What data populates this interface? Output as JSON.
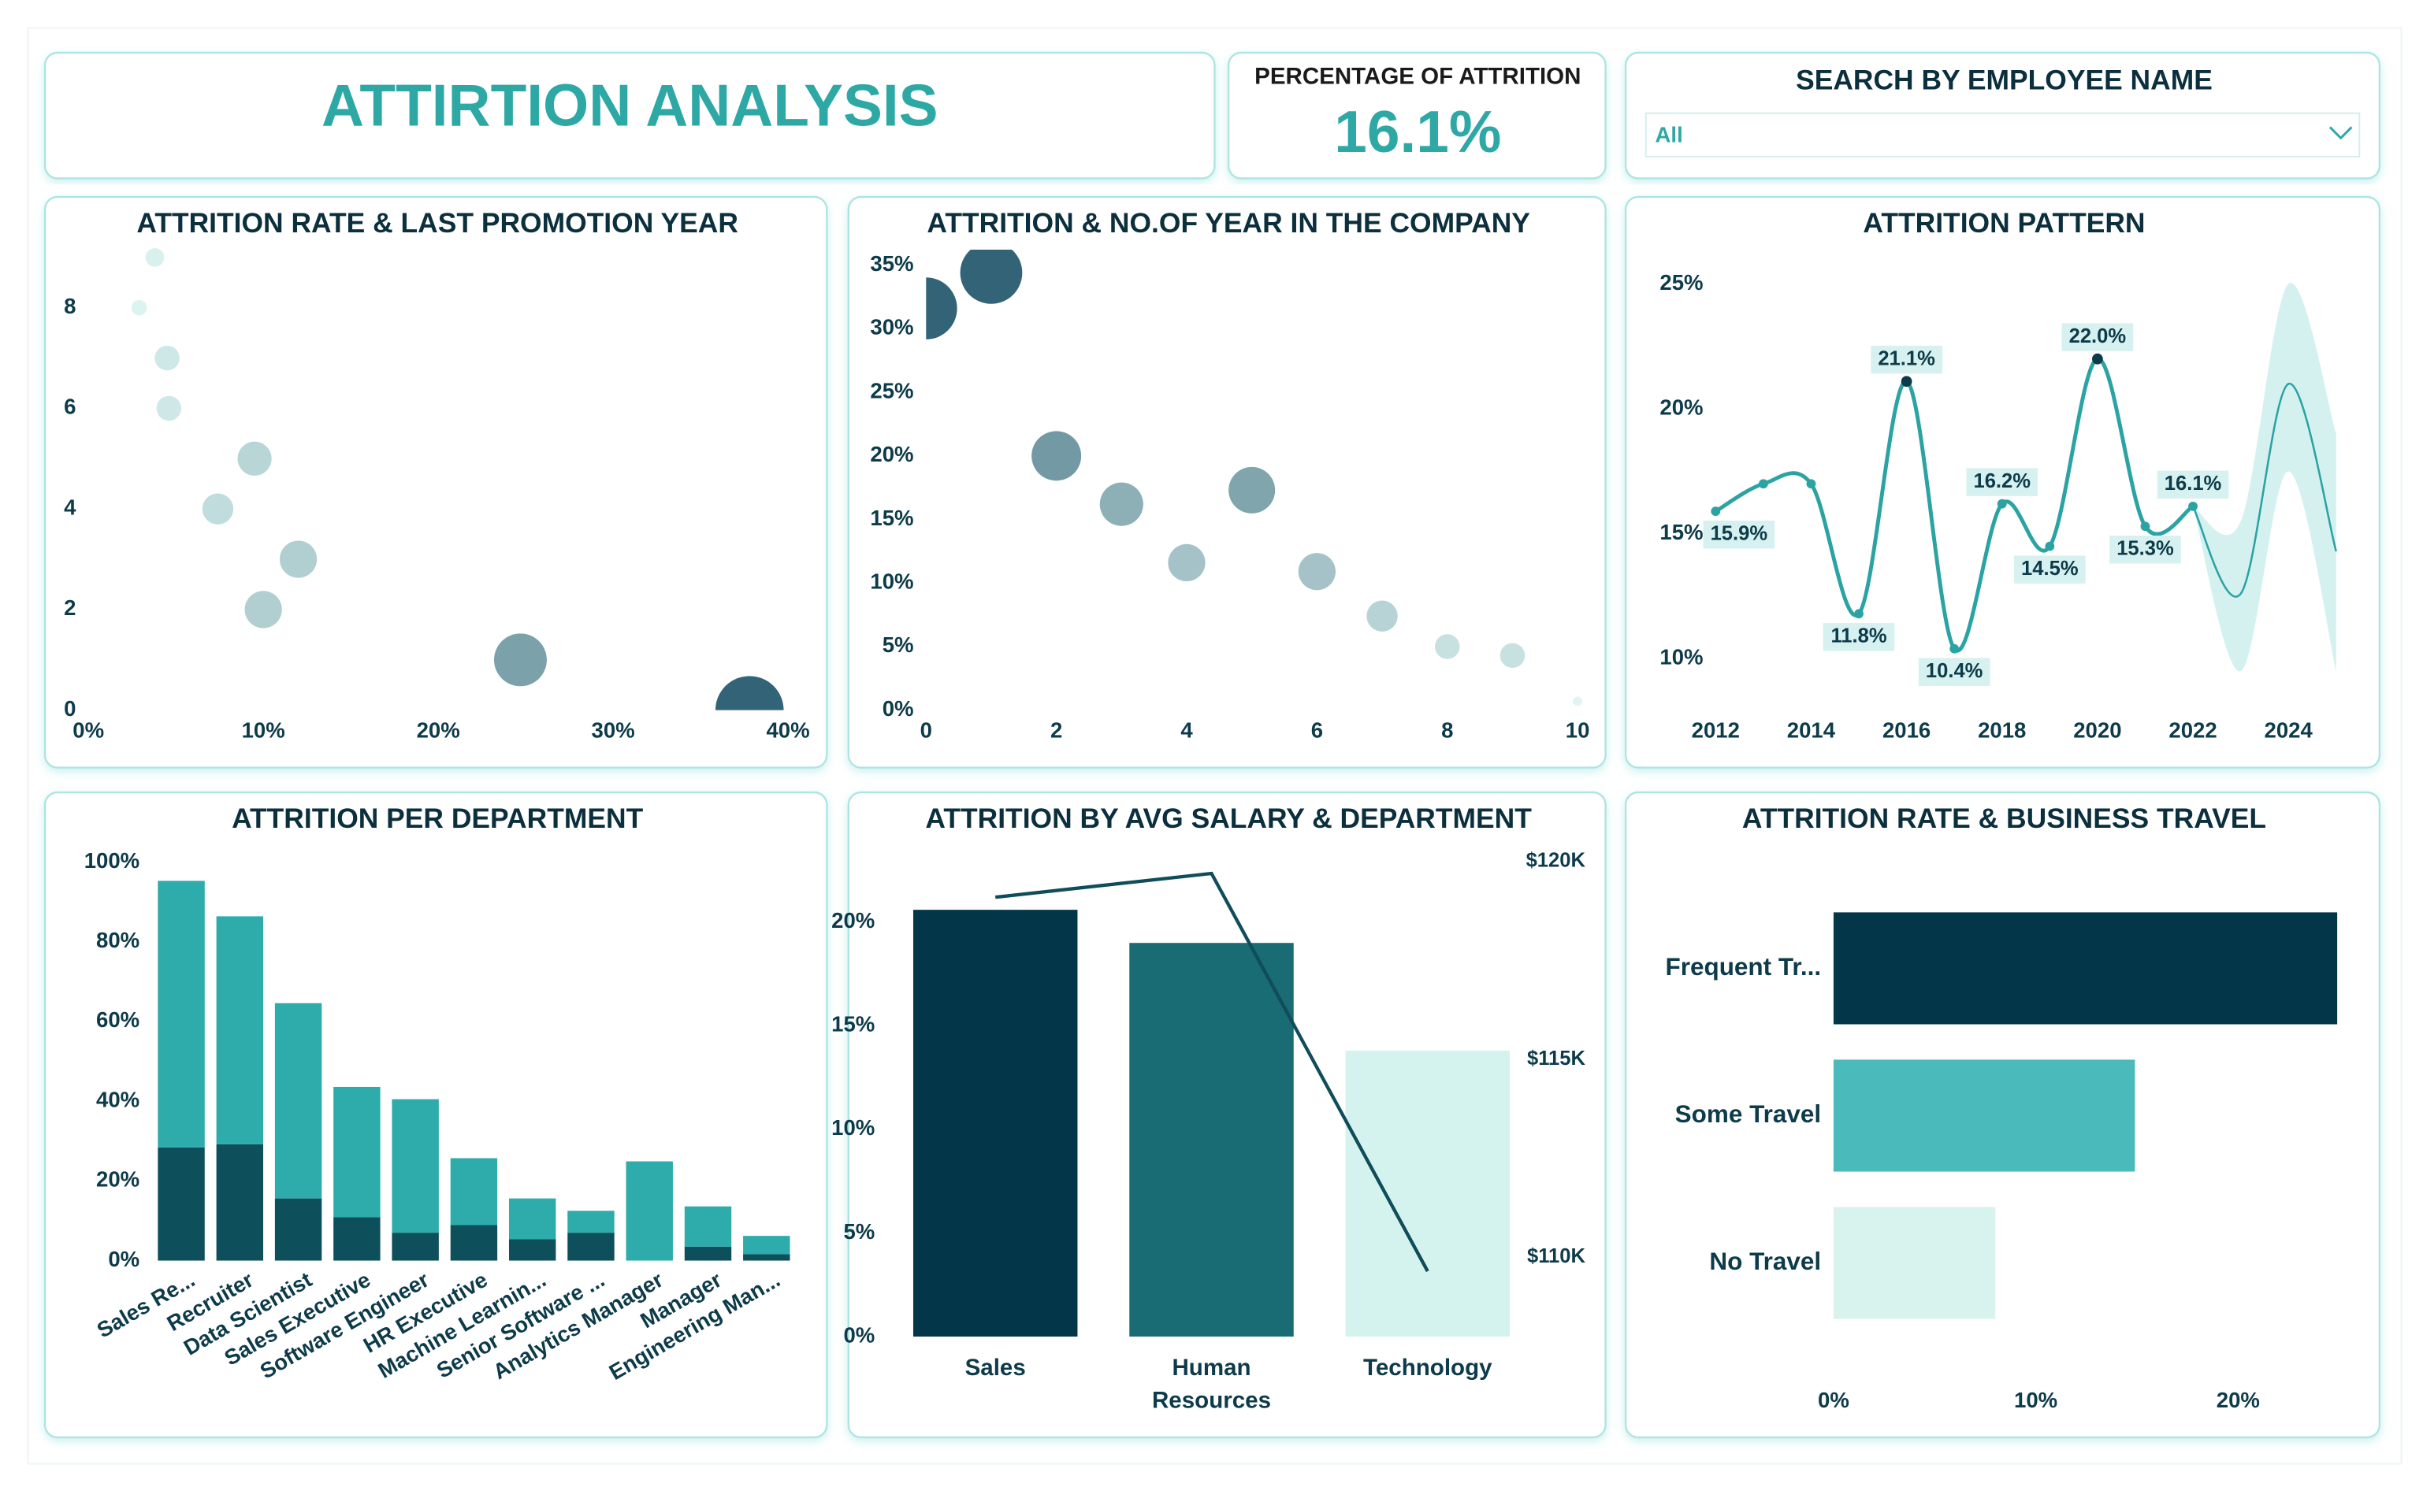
{
  "header": {
    "title": "ATTIRTION ANALYSIS"
  },
  "kpi": {
    "label": "PERCENTAGE OF ATTRITION",
    "value": "16.1%"
  },
  "search": {
    "label": "SEARCH BY EMPLOYEE NAME",
    "selected": "All"
  },
  "chart_data": [
    {
      "type": "scatter",
      "title": "ATTRITION RATE & LAST PROMOTION YEAR",
      "x": [
        3.8,
        2.9,
        4.5,
        4.6,
        9.5,
        7.4,
        12.0,
        10.0,
        24.7,
        37.8
      ],
      "y": [
        9,
        8,
        7,
        6,
        5,
        4,
        3,
        2,
        1,
        0
      ],
      "sizes": [
        36,
        25,
        64,
        64,
        121,
        100,
        144,
        144,
        289,
        484
      ],
      "color_scale": [
        "#d9f3f0",
        "#22566a"
      ],
      "xlim": [
        0,
        40
      ],
      "xticks": [
        {
          "value": 0,
          "label": "0%"
        },
        {
          "value": 10,
          "label": "10%"
        },
        {
          "value": 20,
          "label": "20%"
        },
        {
          "value": 30,
          "label": "30%"
        },
        {
          "value": 40,
          "label": "40%"
        }
      ],
      "ylim": [
        0,
        9
      ],
      "yticks": [
        0,
        2,
        4,
        6,
        8
      ],
      "grid": false
    },
    {
      "type": "scatter",
      "title": "ATTRITION & NO.OF YEAR IN THE COMPANY",
      "x": [
        0,
        1,
        2,
        3,
        4,
        5,
        6,
        7,
        8,
        9,
        10
      ],
      "y": [
        31.6,
        34.4,
        20.0,
        16.2,
        11.6,
        17.3,
        10.9,
        7.4,
        5.0,
        4.3,
        0.7
      ],
      "sizes": [
        400,
        400,
        256,
        196,
        144,
        225,
        144,
        100,
        64,
        64,
        9
      ],
      "color_scale": [
        "#dcf4f1",
        "#22566a"
      ],
      "xlim": [
        0,
        10
      ],
      "xticks": [
        0,
        2,
        4,
        6,
        8,
        10
      ],
      "ylim": [
        0,
        35
      ],
      "yticks": [
        {
          "value": 0,
          "label": "0%"
        },
        {
          "value": 5,
          "label": "5%"
        },
        {
          "value": 10,
          "label": "10%"
        },
        {
          "value": 15,
          "label": "15%"
        },
        {
          "value": 20,
          "label": "20%"
        },
        {
          "value": 25,
          "label": "25%"
        },
        {
          "value": 30,
          "label": "30%"
        },
        {
          "value": 35,
          "label": "35%"
        }
      ],
      "grid": false
    },
    {
      "type": "line",
      "title": "ATTRITION PATTERN",
      "x": [
        2012,
        2013,
        2014,
        2015,
        2016,
        2017,
        2018,
        2019,
        2020,
        2021,
        2022
      ],
      "series": [
        {
          "color": "#2ba3a3",
          "values": [
            15.9,
            17.0,
            17.0,
            11.8,
            21.1,
            10.4,
            16.2,
            14.5,
            22.0,
            15.3,
            16.1
          ],
          "value_labels": [
            "15.9%",
            null,
            null,
            "11.8%",
            "21.1%",
            "10.4%",
            "16.2%",
            "14.5%",
            "22.0%",
            "15.3%",
            "16.1%"
          ]
        }
      ],
      "forecast": {
        "color": "#2ba3a3",
        "band_color": "#cdeeed",
        "x": [
          2022,
          2023,
          2024,
          2025
        ],
        "values": [
          16.1,
          12.6,
          21.0,
          14.3
        ],
        "lower": [
          16.1,
          9.5,
          17.5,
          9.5
        ],
        "upper": [
          16.1,
          15.5,
          25.0,
          19.0
        ]
      },
      "xlim": [
        2012,
        2025
      ],
      "xticks": [
        2012,
        2014,
        2016,
        2018,
        2020,
        2022,
        2024
      ],
      "ylim": [
        8.5,
        26
      ],
      "yticks": [
        {
          "value": 10,
          "label": "10%"
        },
        {
          "value": 15,
          "label": "15%"
        },
        {
          "value": 20,
          "label": "20%"
        },
        {
          "value": 25,
          "label": "25%"
        }
      ],
      "grid": false
    },
    {
      "type": "stacked_bar",
      "title": "ATTRITION PER DEPARTMENT",
      "categories": [
        "Sales Re...",
        "Recruiter",
        "Data Scientist",
        "Sales Executive",
        "Software Engineer",
        "HR Executive",
        "Machine Learnin...",
        "Senior Software ...",
        "Analytics Manager",
        "Manager",
        "Engineering Man..."
      ],
      "series": [
        {
          "color": "#0e4f5c",
          "values": [
            28.4,
            29.2,
            15.6,
            10.9,
            7.0,
            8.9,
            5.4,
            7.0,
            0,
            3.5,
            1.6
          ]
        },
        {
          "color": "#2eabab",
          "values": [
            66.9,
            57.2,
            49.0,
            32.7,
            33.5,
            16.8,
            10.2,
            5.5,
            24.9,
            10.1,
            4.6
          ]
        }
      ],
      "ylim": [
        0,
        100
      ],
      "yticks": [
        {
          "value": 0,
          "label": "0%"
        },
        {
          "value": 20,
          "label": "20%"
        },
        {
          "value": 40,
          "label": "40%"
        },
        {
          "value": 60,
          "label": "60%"
        },
        {
          "value": 80,
          "label": "80%"
        },
        {
          "value": 100,
          "label": "100%"
        }
      ],
      "grid": false
    },
    {
      "type": "combo",
      "title": "ATTRITION BY AVG SALARY & DEPARTMENT",
      "categories": [
        "Sales",
        "Human Resources",
        "Technology"
      ],
      "series": [
        {
          "colors": [
            "#033648",
            "#196b74",
            "#d5f3ee"
          ],
          "values": [
            20.6,
            19.0,
            13.8
          ]
        },
        {
          "color": "#0f4d5a",
          "axis": "y2",
          "values": [
            119100,
            119700,
            109650
          ]
        }
      ],
      "ylim": [
        0,
        23.5
      ],
      "yticks": [
        {
          "value": 0,
          "label": "0%"
        },
        {
          "value": 5,
          "label": "5%"
        },
        {
          "value": 10,
          "label": "10%"
        },
        {
          "value": 15,
          "label": "15%"
        },
        {
          "value": 20,
          "label": "20%"
        }
      ],
      "y2lim": [
        108000,
        120300
      ],
      "y2ticks": [
        {
          "value": 110000,
          "label": "$110K"
        },
        {
          "value": 115000,
          "label": "$115K"
        },
        {
          "value": 120000,
          "label": "$120K"
        }
      ],
      "grid": false
    },
    {
      "type": "hbar",
      "title": "ATTRITION RATE & BUSINESS TRAVEL",
      "categories": [
        "Frequent Tr...",
        "Some Travel",
        "No Travel"
      ],
      "values": [
        24.9,
        14.9,
        8.0
      ],
      "colors": [
        "#033648",
        "#4bbaba",
        "#d8f3ee"
      ],
      "xlim": [
        0,
        25
      ],
      "xticks": [
        {
          "value": 0,
          "label": "0%"
        },
        {
          "value": 10,
          "label": "10%"
        },
        {
          "value": 20,
          "label": "20%"
        }
      ],
      "grid": false
    }
  ]
}
